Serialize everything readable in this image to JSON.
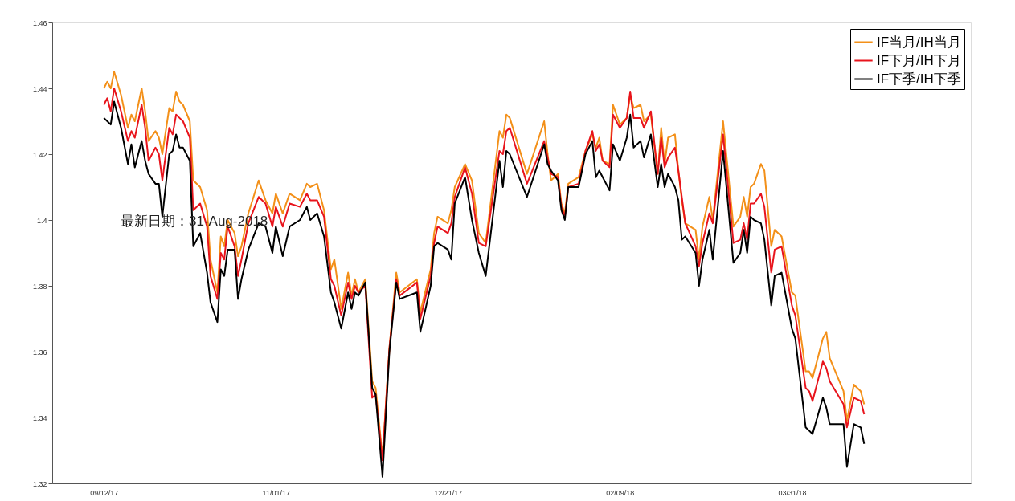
{
  "chart_data": {
    "type": "line",
    "x": [
      "2017-09-12",
      "2017-09-13",
      "2017-09-14",
      "2017-09-15",
      "2017-09-17",
      "2017-09-19",
      "2017-09-20",
      "2017-09-21",
      "2017-09-23",
      "2017-09-24",
      "2017-09-25",
      "2017-09-27",
      "2017-09-28",
      "2017-09-29",
      "2017-10-01",
      "2017-10-02",
      "2017-10-03",
      "2017-10-04",
      "2017-10-05",
      "2017-10-07",
      "2017-10-08",
      "2017-10-10",
      "2017-10-12",
      "2017-10-13",
      "2017-10-15",
      "2017-10-16",
      "2017-10-17",
      "2017-10-18",
      "2017-10-20",
      "2017-10-21",
      "2017-10-22",
      "2017-10-24",
      "2017-10-27",
      "2017-10-29",
      "2017-10-31",
      "2017-11-01",
      "2017-11-03",
      "2017-11-05",
      "2017-11-08",
      "2017-11-10",
      "2017-11-11",
      "2017-11-13",
      "2017-11-15",
      "2017-11-17",
      "2017-11-18",
      "2017-11-20",
      "2017-11-22",
      "2017-11-23",
      "2017-11-24",
      "2017-11-25",
      "2017-11-27",
      "2017-11-29",
      "2017-11-30",
      "2017-12-02",
      "2017-12-04",
      "2017-12-06",
      "2017-12-07",
      "2017-12-12",
      "2017-12-13",
      "2017-12-16",
      "2017-12-17",
      "2017-12-18",
      "2017-12-21",
      "2017-12-22",
      "2017-12-23",
      "2017-12-26",
      "2017-12-28",
      "2017-12-30",
      "2018-01-01",
      "2018-01-05",
      "2018-01-06",
      "2018-01-07",
      "2018-01-08",
      "2018-01-13",
      "2018-01-18",
      "2018-01-19",
      "2018-01-20",
      "2018-01-22",
      "2018-01-23",
      "2018-01-24",
      "2018-01-25",
      "2018-01-28",
      "2018-01-30",
      "2018-02-01",
      "2018-02-02",
      "2018-02-03",
      "2018-02-04",
      "2018-02-06",
      "2018-02-07",
      "2018-02-09",
      "2018-02-11",
      "2018-02-12",
      "2018-02-13",
      "2018-02-15",
      "2018-02-16",
      "2018-02-18",
      "2018-02-20",
      "2018-02-21",
      "2018-02-22",
      "2018-02-23",
      "2018-02-25",
      "2018-02-26",
      "2018-02-27",
      "2018-02-28",
      "2018-03-03",
      "2018-03-04",
      "2018-03-05",
      "2018-03-07",
      "2018-03-08",
      "2018-03-11",
      "2018-03-14",
      "2018-03-16",
      "2018-03-17",
      "2018-03-18",
      "2018-03-19",
      "2018-03-20",
      "2018-03-22",
      "2018-03-23",
      "2018-03-25",
      "2018-03-26",
      "2018-03-28",
      "2018-03-31",
      "2018-04-01",
      "2018-04-04",
      "2018-04-05",
      "2018-04-06",
      "2018-04-09",
      "2018-04-10",
      "2018-04-11",
      "2018-04-15",
      "2018-04-16",
      "2018-04-18",
      "2018-04-20",
      "2018-04-21"
    ],
    "series": [
      {
        "name": "IF当月/IH当月",
        "color": "#f39019",
        "values": [
          1.44,
          1.442,
          1.44,
          1.445,
          1.438,
          1.428,
          1.432,
          1.43,
          1.44,
          1.433,
          1.424,
          1.427,
          1.425,
          1.42,
          1.434,
          1.433,
          1.439,
          1.436,
          1.435,
          1.43,
          1.412,
          1.41,
          1.403,
          1.388,
          1.378,
          1.395,
          1.392,
          1.4,
          1.396,
          1.389,
          1.392,
          1.402,
          1.412,
          1.406,
          1.402,
          1.408,
          1.402,
          1.408,
          1.406,
          1.411,
          1.41,
          1.411,
          1.403,
          1.385,
          1.388,
          1.373,
          1.384,
          1.377,
          1.382,
          1.378,
          1.382,
          1.351,
          1.349,
          1.328,
          1.361,
          1.384,
          1.378,
          1.382,
          1.372,
          1.385,
          1.396,
          1.401,
          1.399,
          1.403,
          1.41,
          1.417,
          1.412,
          1.396,
          1.393,
          1.427,
          1.425,
          1.432,
          1.431,
          1.414,
          1.43,
          1.42,
          1.412,
          1.414,
          1.405,
          1.402,
          1.411,
          1.413,
          1.421,
          1.426,
          1.422,
          1.425,
          1.418,
          1.417,
          1.435,
          1.429,
          1.431,
          1.438,
          1.434,
          1.435,
          1.43,
          1.432,
          1.414,
          1.428,
          1.417,
          1.425,
          1.426,
          1.415,
          1.406,
          1.399,
          1.397,
          1.388,
          1.398,
          1.407,
          1.4,
          1.43,
          1.398,
          1.401,
          1.407,
          1.401,
          1.41,
          1.411,
          1.417,
          1.415,
          1.392,
          1.397,
          1.395,
          1.378,
          1.377,
          1.354,
          1.354,
          1.352,
          1.364,
          1.366,
          1.358,
          1.348,
          1.339,
          1.35,
          1.348,
          1.344
        ]
      },
      {
        "name": "IF下月/IH下月",
        "color": "#e8141c",
        "values": [
          1.435,
          1.437,
          1.433,
          1.44,
          1.433,
          1.424,
          1.427,
          1.425,
          1.435,
          1.428,
          1.418,
          1.422,
          1.42,
          1.412,
          1.428,
          1.426,
          1.432,
          1.431,
          1.43,
          1.425,
          1.403,
          1.405,
          1.398,
          1.383,
          1.376,
          1.39,
          1.388,
          1.398,
          1.392,
          1.383,
          1.388,
          1.399,
          1.407,
          1.405,
          1.398,
          1.404,
          1.398,
          1.405,
          1.404,
          1.408,
          1.406,
          1.406,
          1.401,
          1.382,
          1.38,
          1.371,
          1.381,
          1.376,
          1.38,
          1.378,
          1.38,
          1.346,
          1.347,
          1.327,
          1.361,
          1.382,
          1.377,
          1.381,
          1.37,
          1.383,
          1.393,
          1.398,
          1.396,
          1.399,
          1.407,
          1.416,
          1.408,
          1.393,
          1.392,
          1.421,
          1.42,
          1.427,
          1.428,
          1.411,
          1.424,
          1.419,
          1.414,
          1.413,
          1.404,
          1.401,
          1.41,
          1.411,
          1.421,
          1.427,
          1.421,
          1.423,
          1.418,
          1.416,
          1.432,
          1.428,
          1.431,
          1.439,
          1.431,
          1.431,
          1.428,
          1.433,
          1.414,
          1.425,
          1.416,
          1.419,
          1.422,
          1.415,
          1.407,
          1.399,
          1.392,
          1.386,
          1.393,
          1.402,
          1.399,
          1.426,
          1.393,
          1.394,
          1.399,
          1.394,
          1.405,
          1.405,
          1.408,
          1.404,
          1.384,
          1.391,
          1.392,
          1.374,
          1.371,
          1.349,
          1.348,
          1.345,
          1.357,
          1.355,
          1.351,
          1.344,
          1.337,
          1.346,
          1.345,
          1.341
        ]
      },
      {
        "name": "IF下季/IH下季",
        "color": "#000000",
        "values": [
          1.431,
          1.43,
          1.429,
          1.436,
          1.428,
          1.417,
          1.423,
          1.416,
          1.424,
          1.418,
          1.414,
          1.411,
          1.411,
          1.401,
          1.42,
          1.421,
          1.426,
          1.422,
          1.422,
          1.418,
          1.392,
          1.396,
          1.384,
          1.375,
          1.369,
          1.385,
          1.383,
          1.391,
          1.391,
          1.376,
          1.382,
          1.391,
          1.399,
          1.398,
          1.39,
          1.398,
          1.389,
          1.398,
          1.4,
          1.404,
          1.4,
          1.402,
          1.395,
          1.378,
          1.375,
          1.367,
          1.378,
          1.373,
          1.378,
          1.377,
          1.381,
          1.349,
          1.347,
          1.322,
          1.36,
          1.381,
          1.376,
          1.378,
          1.366,
          1.38,
          1.392,
          1.393,
          1.391,
          1.388,
          1.405,
          1.413,
          1.4,
          1.39,
          1.383,
          1.418,
          1.41,
          1.421,
          1.42,
          1.407,
          1.423,
          1.417,
          1.415,
          1.412,
          1.403,
          1.4,
          1.41,
          1.41,
          1.42,
          1.424,
          1.413,
          1.415,
          1.413,
          1.409,
          1.423,
          1.418,
          1.425,
          1.432,
          1.422,
          1.424,
          1.419,
          1.426,
          1.41,
          1.417,
          1.41,
          1.414,
          1.41,
          1.406,
          1.394,
          1.395,
          1.39,
          1.38,
          1.388,
          1.397,
          1.388,
          1.421,
          1.387,
          1.39,
          1.397,
          1.39,
          1.401,
          1.4,
          1.399,
          1.394,
          1.374,
          1.383,
          1.384,
          1.367,
          1.364,
          1.337,
          1.336,
          1.335,
          1.346,
          1.343,
          1.338,
          1.338,
          1.325,
          1.338,
          1.337,
          1.332
        ]
      }
    ],
    "xlim": [
      "2017-08-28",
      "2018-05-22"
    ],
    "xticks": [
      {
        "value": "2017-09-12",
        "label": "09/12/17"
      },
      {
        "value": "2017-11-01",
        "label": "11/01/17"
      },
      {
        "value": "2017-12-21",
        "label": "12/21/17"
      },
      {
        "value": "2018-02-09",
        "label": "02/09/18"
      },
      {
        "value": "2018-03-31",
        "label": "03/31/18"
      }
    ],
    "ylim": [
      1.32,
      1.46
    ],
    "yticks": [
      1.32,
      1.34,
      1.36,
      1.38,
      1.4,
      1.42,
      1.44,
      1.46
    ],
    "annotations": [
      "最新日期：31-Aug-2018"
    ],
    "legend": "top right",
    "grid": false,
    "marker": "none",
    "line_style": "solid"
  }
}
